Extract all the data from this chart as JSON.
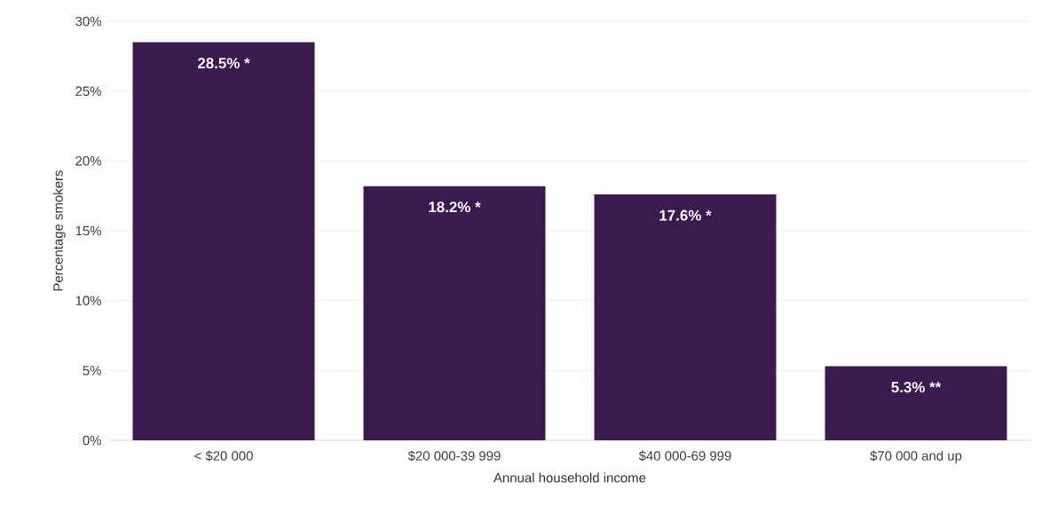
{
  "chart_data": {
    "type": "bar",
    "xlabel": "Annual household income",
    "ylabel": "Percentage smokers",
    "categories": [
      "< $20 000",
      "$20 000-39 999",
      "$40 000-69 999",
      "$70 000 and up"
    ],
    "values": [
      28.5,
      18.2,
      17.6,
      5.3
    ],
    "value_labels": [
      "28.5% *",
      "18.2% *",
      "17.6% *",
      "5.3% **"
    ],
    "color": "#3b1a4f",
    "ylim": [
      0,
      30
    ],
    "yticks": [
      {
        "value": 0,
        "label": "0%"
      },
      {
        "value": 5,
        "label": "5%"
      },
      {
        "value": 10,
        "label": "10%"
      },
      {
        "value": 15,
        "label": "15%"
      },
      {
        "value": 20,
        "label": "20%"
      },
      {
        "value": 25,
        "label": "25%"
      },
      {
        "value": 30,
        "label": "30%"
      }
    ],
    "grid": "y"
  }
}
